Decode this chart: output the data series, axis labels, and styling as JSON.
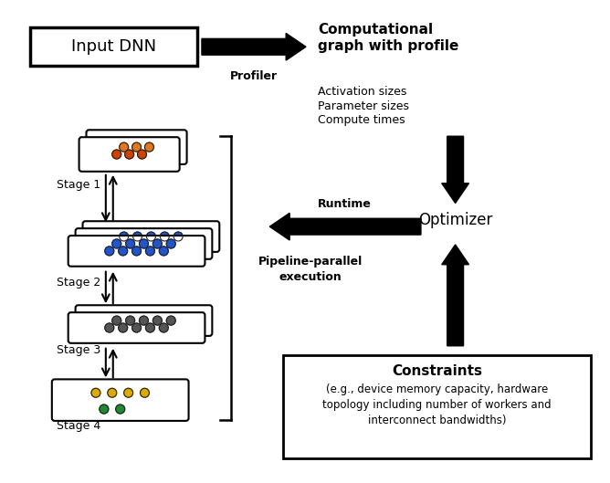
{
  "input_dnn_label": "Input DNN",
  "profiler_label": "Profiler",
  "cg_title": "Computational\ngraph with profile",
  "cg_details": [
    "Activation sizes",
    "Parameter sizes",
    "Compute times"
  ],
  "optimizer_label": "Optimizer",
  "runtime_label": "Runtime",
  "pipeline_label": "Pipeline-parallel\nexecution",
  "constraints_title": "Constraints",
  "constraints_body": "(e.g., device memory capacity, hardware\ntopology including number of workers and\ninterconnect bandwidths)",
  "stages": [
    "Stage 1",
    "Stage 2",
    "Stage 3",
    "Stage 4"
  ],
  "stage1_top_dots": [
    "#e07820",
    "#e07820",
    "#e07820"
  ],
  "stage1_bot_dots": [
    "#cc4400",
    "#cc4400",
    "#cc4400"
  ],
  "stage2_dots_per_layer": [
    "#2255cc",
    "#2255cc",
    "#2255cc",
    "#2255cc",
    "#2255cc"
  ],
  "stage3_dots_per_layer": [
    "#555555",
    "#555555",
    "#555555",
    "#555555",
    "#555555"
  ],
  "stage4_top_dots": [
    "#ddaa00",
    "#ddaa00",
    "#ddaa00",
    "#ddaa00"
  ],
  "stage4_bot_dots": [
    "#228833",
    "#228833"
  ]
}
